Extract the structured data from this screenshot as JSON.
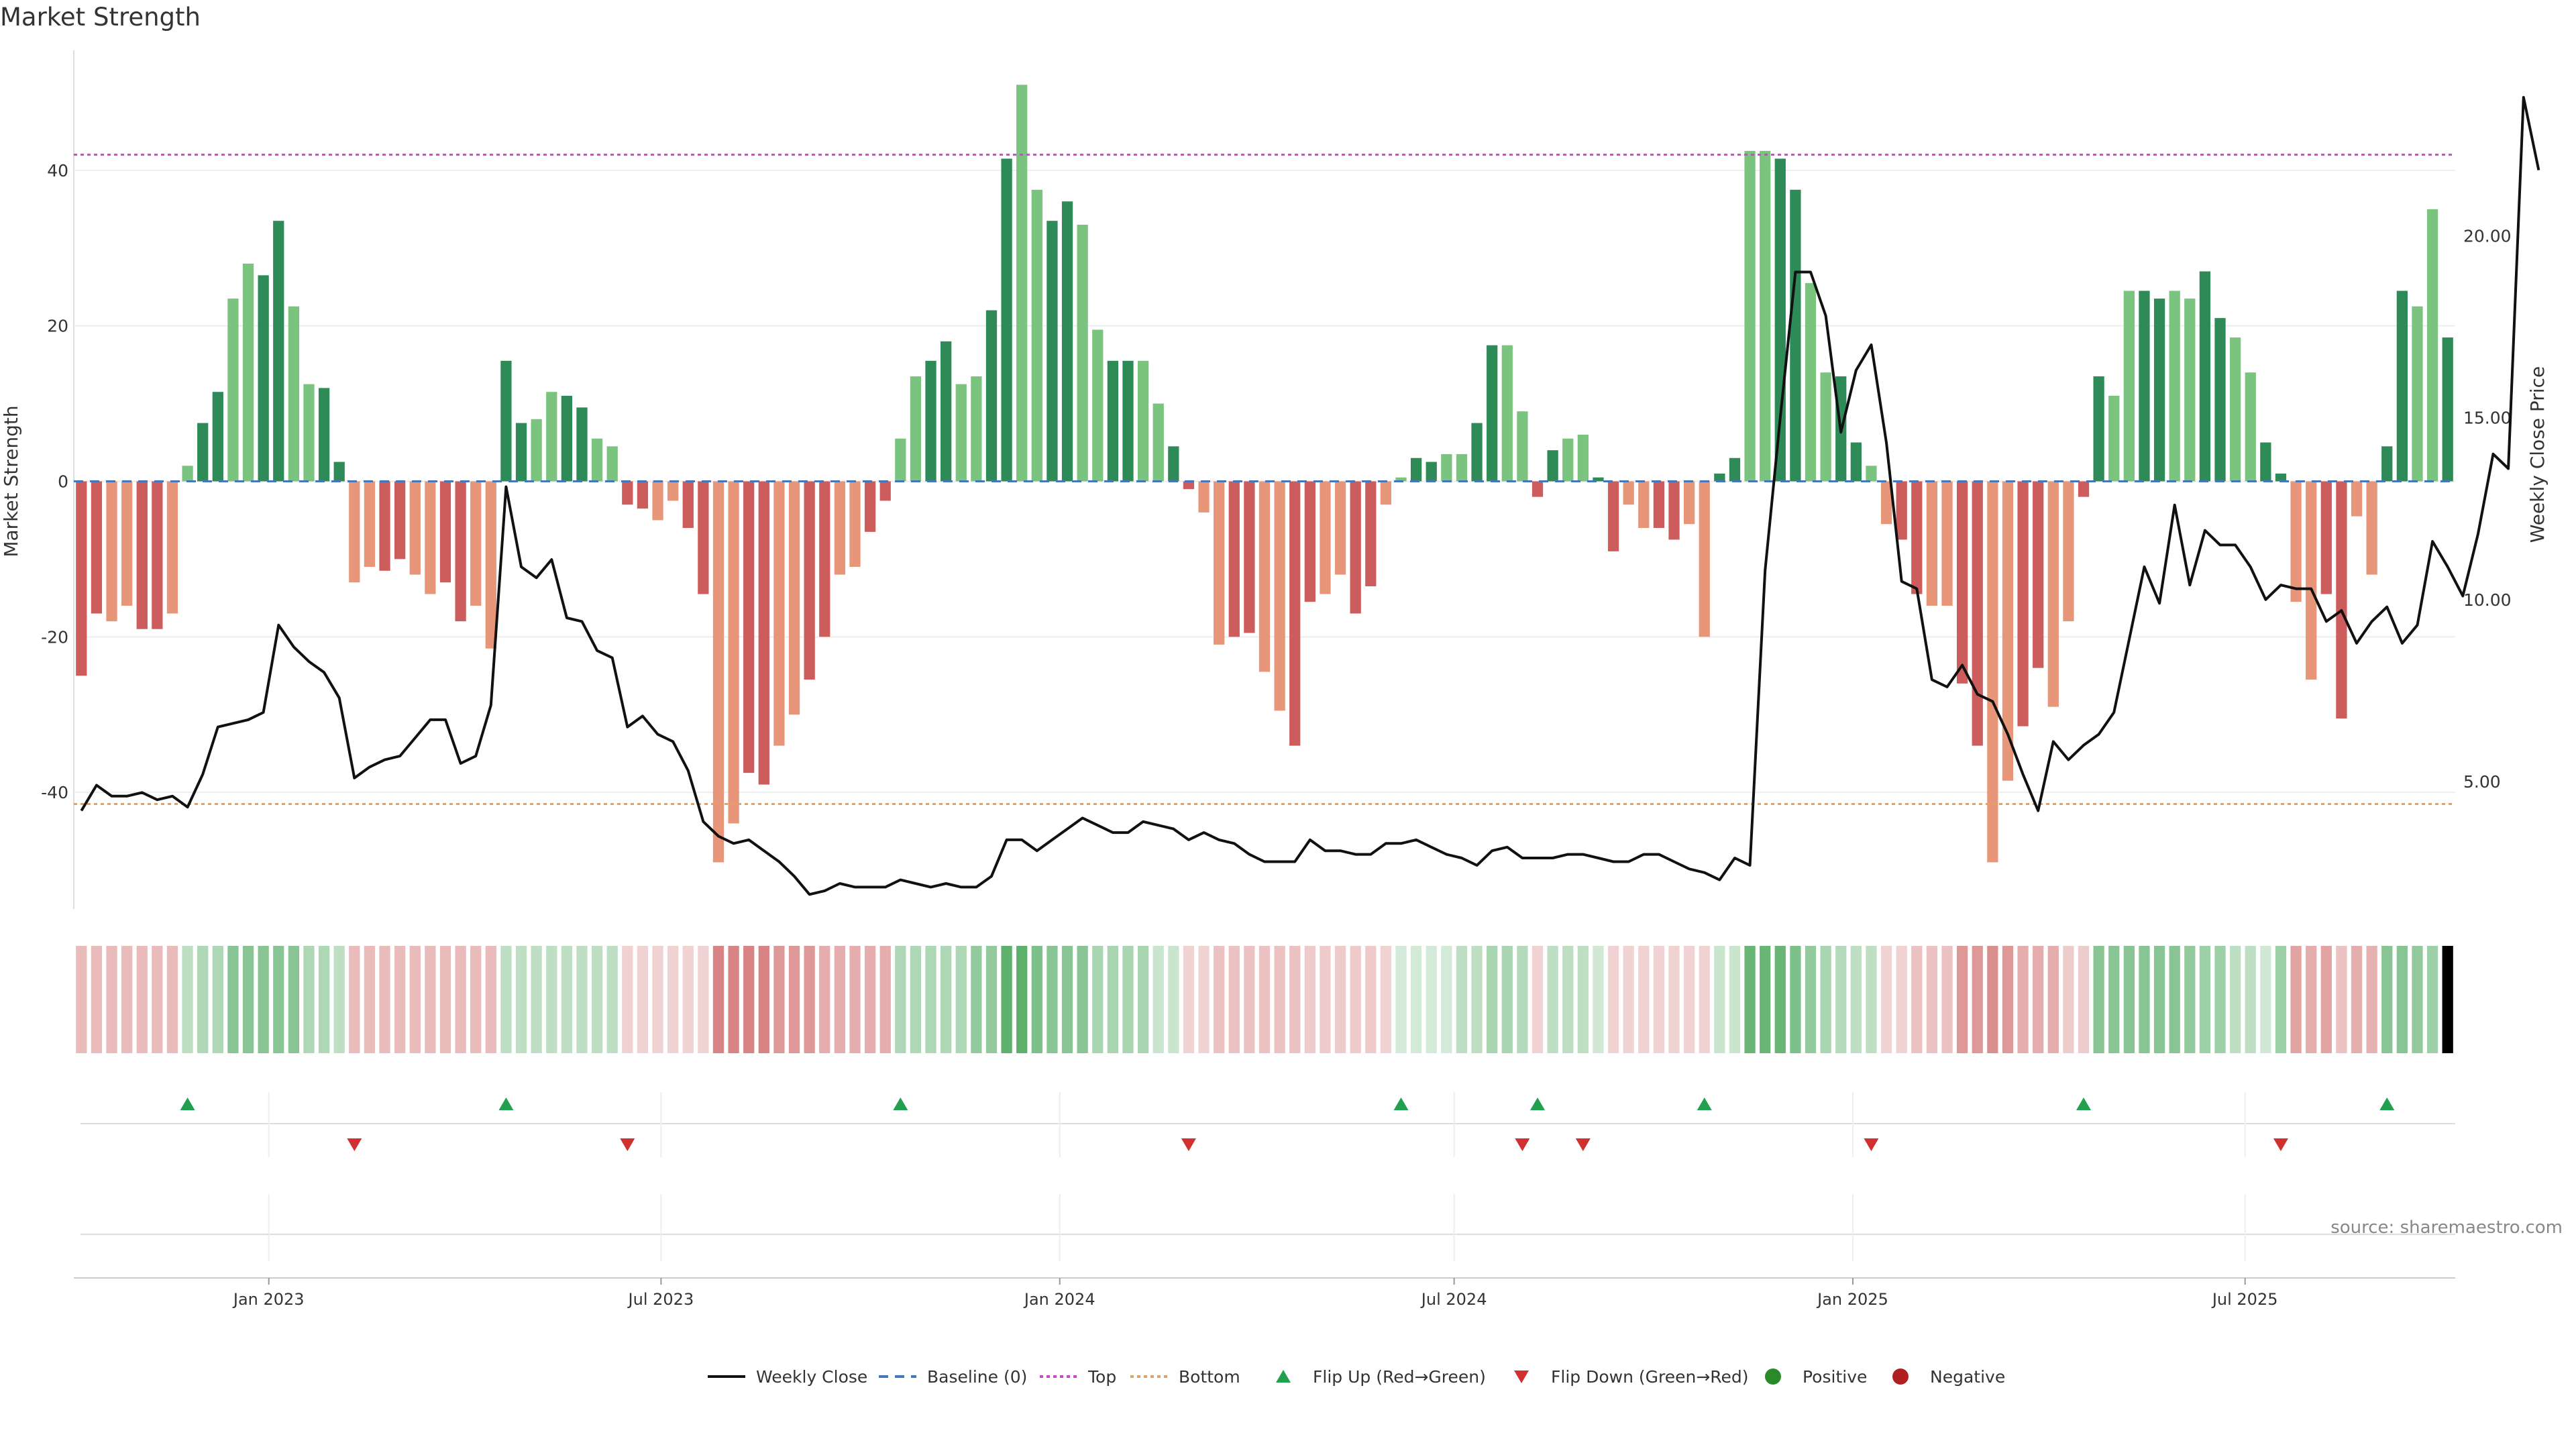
{
  "chart_data": {
    "type": "bar",
    "title": "Market Strength",
    "ylabel": "Market Strength",
    "y2label": "Weekly Close Price",
    "ylim": [
      -55,
      55
    ],
    "y2lim": [
      1.5,
      25
    ],
    "yticks": [
      "-40",
      "-20",
      "0",
      "20",
      "40"
    ],
    "y2ticks": [
      "5.00",
      "10.00",
      "15.00",
      "20.00"
    ],
    "xticks": [
      "Jan 2023",
      "Jul 2023",
      "Jan 2024",
      "Jul 2024",
      "Jan 2025",
      "Jul 2025"
    ],
    "top_level": 42,
    "bottom_level": -41.5,
    "source": "source: sharemaestro.com",
    "legend": [
      "Weekly Close",
      "Baseline (0)",
      "Top",
      "Bottom",
      "Flip Up (Red→Green)",
      "Flip Down (Green→Red)",
      "Positive",
      "Negative"
    ],
    "strength": [
      -25,
      -17,
      -18,
      -16,
      -19,
      -19,
      -17,
      2,
      7.5,
      11.5,
      23.5,
      28,
      26.5,
      33.5,
      22.5,
      12.5,
      12,
      2.5,
      -13,
      -11,
      -11.5,
      -10,
      -12,
      -14.5,
      -13,
      -18,
      -16,
      -21.5,
      15.5,
      7.5,
      8,
      11.5,
      11,
      9.5,
      5.5,
      4.5,
      -3,
      -3.5,
      -5,
      -2.5,
      -6,
      -14.5,
      -49,
      -44,
      -37.5,
      -39,
      -34,
      -30,
      -25.5,
      -20,
      -12,
      -11,
      -6.5,
      -2.5,
      5.5,
      13.5,
      15.5,
      18,
      12.5,
      13.5,
      22,
      41.5,
      51,
      37.5,
      33.5,
      36,
      33,
      19.5,
      15.5,
      15.5,
      15.5,
      10,
      4.5,
      -1,
      -4,
      -21,
      -20,
      -19.5,
      -24.5,
      -29.5,
      -34,
      -15.5,
      -14.5,
      -12,
      -17,
      -13.5,
      -3,
      0.5,
      3,
      2.5,
      3.5,
      3.5,
      7.5,
      17.5,
      17.5,
      9,
      -2,
      4,
      5.5,
      6,
      0.5,
      -9,
      -3,
      -6,
      -6,
      -7.5,
      -5.5,
      -20,
      1,
      3,
      42.5,
      42.5,
      41.5,
      37.5,
      25.5,
      14,
      13.5,
      5,
      2,
      -5.5,
      -7.5,
      -14.5,
      -16,
      -16,
      -26,
      -34,
      -49,
      -38.5,
      -31.5,
      -24,
      -29,
      -18,
      -2,
      13.5,
      11,
      24.5,
      24.5,
      23.5,
      24.5,
      23.5,
      27,
      21,
      18.5,
      14,
      5,
      1,
      -15.5,
      -25.5,
      -14.5,
      -30.5,
      -4.5,
      -12,
      4.5,
      24.5,
      22.5,
      35,
      18.5
    ],
    "close": [
      4.2,
      4.9,
      4.6,
      4.6,
      4.7,
      4.5,
      4.6,
      4.3,
      5.2,
      6.5,
      6.6,
      6.7,
      6.9,
      9.3,
      8.7,
      8.3,
      8,
      7.3,
      5.1,
      5.4,
      5.6,
      5.7,
      6.2,
      6.7,
      6.7,
      5.5,
      5.7,
      7.1,
      13.1,
      10.9,
      10.6,
      11.1,
      9.5,
      9.4,
      8.6,
      8.4,
      6.5,
      6.8,
      6.3,
      6.1,
      5.3,
      3.9,
      3.5,
      3.3,
      3.4,
      3.1,
      2.8,
      2.4,
      1.9,
      2,
      2.2,
      2.1,
      2.1,
      2.1,
      2.3,
      2.2,
      2.1,
      2.2,
      2.1,
      2.1,
      2.4,
      3.4,
      3.4,
      3.1,
      3.4,
      3.7,
      4,
      3.8,
      3.6,
      3.6,
      3.9,
      3.8,
      3.7,
      3.4,
      3.6,
      3.4,
      3.3,
      3,
      2.8,
      2.8,
      2.8,
      3.4,
      3.1,
      3.1,
      3,
      3,
      3.3,
      3.3,
      3.4,
      3.2,
      3,
      2.9,
      2.7,
      3.1,
      3.2,
      2.9,
      2.9,
      2.9,
      3,
      3,
      2.9,
      2.8,
      2.8,
      3,
      3,
      2.8,
      2.6,
      2.5,
      2.3,
      2.9,
      2.7,
      10.8,
      15,
      19,
      19,
      17.8,
      14.6,
      16.3,
      17,
      14.3,
      10.5,
      10.3,
      7.8,
      7.6,
      8.2,
      7.4,
      7.2,
      6.3,
      5.2,
      4.2,
      6.1,
      5.6,
      6,
      6.3,
      6.9,
      8.9,
      10.9,
      9.9,
      12.6,
      10.4,
      11.9,
      11.5,
      11.5,
      10.9,
      10,
      10.4,
      10.3,
      10.3,
      9.4,
      9.7,
      8.8,
      9.4,
      9.8,
      8.8,
      9.3,
      11.6,
      10.9,
      10.1,
      11.8,
      14,
      13.6,
      23.8,
      21.8
    ],
    "band_intensity": [
      0.33,
      0.33,
      0.33,
      0.33,
      0.33,
      0.33,
      0.33,
      0.3,
      0.38,
      0.38,
      0.55,
      0.55,
      0.55,
      0.55,
      0.55,
      0.38,
      0.38,
      0.3,
      0.33,
      0.33,
      0.33,
      0.33,
      0.33,
      0.33,
      0.33,
      0.33,
      0.33,
      0.33,
      0.3,
      0.3,
      0.3,
      0.3,
      0.3,
      0.3,
      0.3,
      0.3,
      0.22,
      0.22,
      0.22,
      0.22,
      0.22,
      0.22,
      0.6,
      0.6,
      0.6,
      0.6,
      0.5,
      0.5,
      0.5,
      0.4,
      0.4,
      0.4,
      0.4,
      0.4,
      0.38,
      0.38,
      0.38,
      0.38,
      0.38,
      0.5,
      0.5,
      0.75,
      0.75,
      0.6,
      0.55,
      0.55,
      0.55,
      0.4,
      0.4,
      0.4,
      0.4,
      0.25,
      0.25,
      0.22,
      0.22,
      0.3,
      0.3,
      0.3,
      0.3,
      0.3,
      0.3,
      0.26,
      0.26,
      0.26,
      0.26,
      0.26,
      0.22,
      0.2,
      0.2,
      0.2,
      0.2,
      0.3,
      0.3,
      0.4,
      0.4,
      0.35,
      0.22,
      0.3,
      0.3,
      0.3,
      0.22,
      0.22,
      0.22,
      0.22,
      0.22,
      0.22,
      0.22,
      0.22,
      0.25,
      0.25,
      0.7,
      0.7,
      0.7,
      0.6,
      0.5,
      0.4,
      0.35,
      0.3,
      0.3,
      0.22,
      0.22,
      0.3,
      0.3,
      0.3,
      0.5,
      0.5,
      0.55,
      0.5,
      0.4,
      0.4,
      0.4,
      0.25,
      0.25,
      0.55,
      0.55,
      0.55,
      0.55,
      0.55,
      0.55,
      0.5,
      0.45,
      0.45,
      0.3,
      0.3,
      0.22,
      0.45,
      0.45,
      0.4,
      0.45,
      0.3,
      0.4,
      0.38,
      0.55,
      0.55,
      0.5,
      0.45
    ],
    "flip_up_weeks": [
      7,
      28,
      54,
      87,
      96,
      107,
      132,
      152
    ],
    "flip_down_weeks": [
      18,
      36,
      73,
      95,
      99,
      118,
      145
    ]
  }
}
